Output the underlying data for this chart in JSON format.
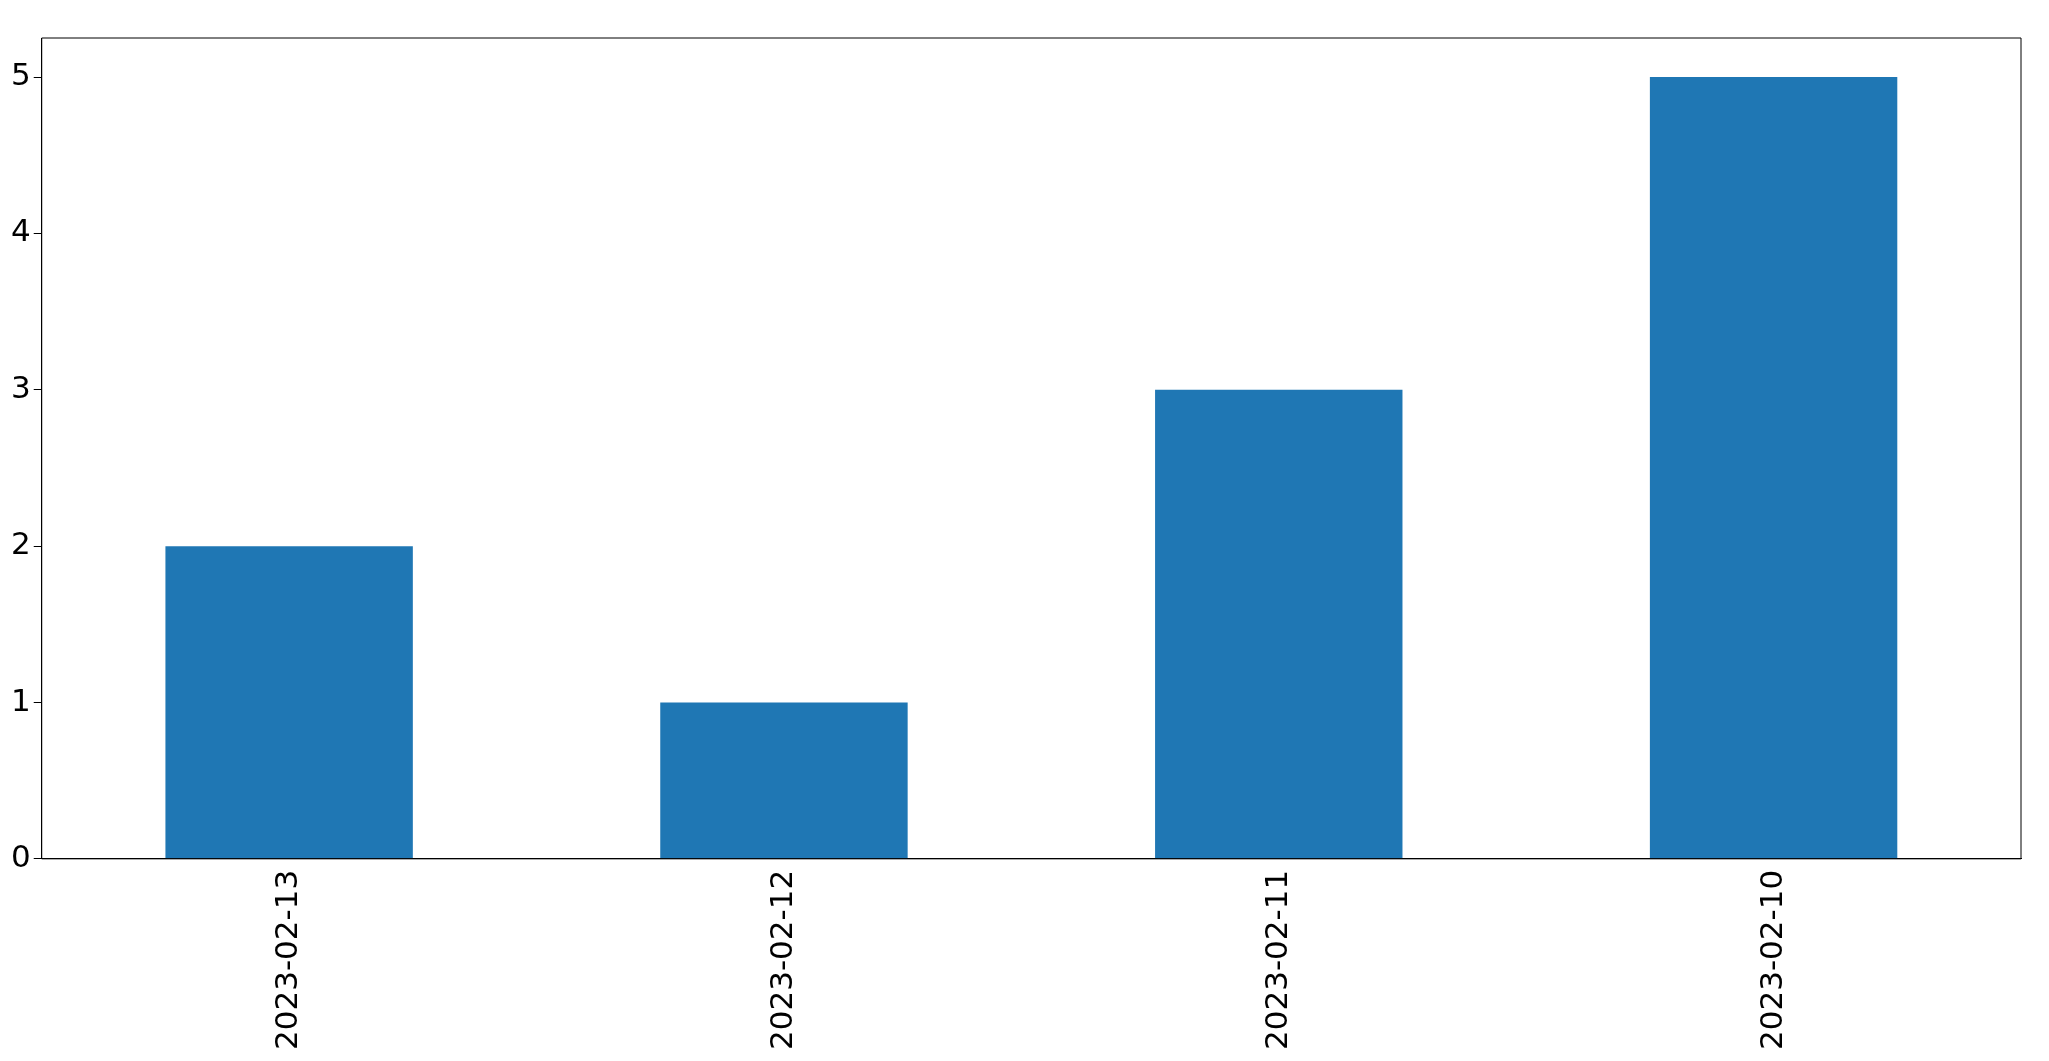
{
  "chart_data": {
    "type": "bar",
    "categories": [
      "2023-02-13",
      "2023-02-12",
      "2023-02-11",
      "2023-02-10"
    ],
    "values": [
      2,
      1,
      3,
      5
    ],
    "color": "#1f77b4",
    "ylim": [
      0,
      5.25
    ],
    "yticks": [
      0,
      1,
      2,
      3,
      4,
      5
    ],
    "grid": false,
    "legend": false
  }
}
